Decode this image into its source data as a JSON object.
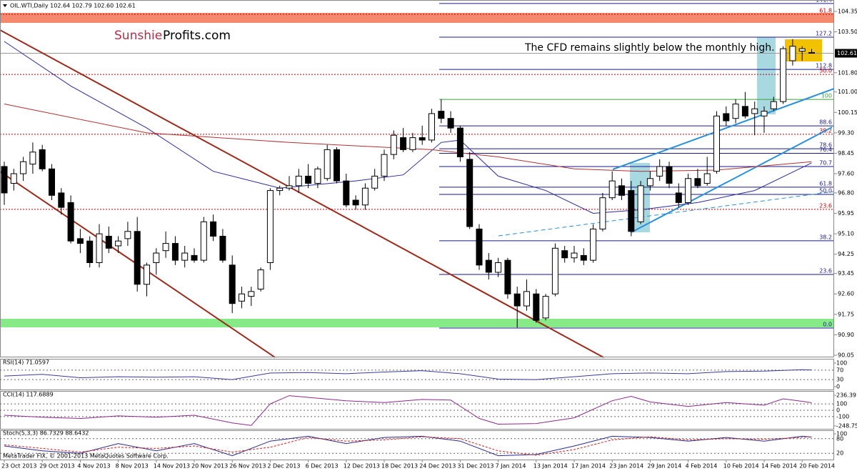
{
  "header": "OIL.WTI,Daily  102.64 102.79 102.60 102.61",
  "logo": {
    "part1": "Sunshie",
    "part2": "Profits.com"
  },
  "annotation": "The CFD remains slightly below the monthly high.",
  "copyright": "MetaTrader FIX, © 2001-2013 MetaQuotes Software Corp.",
  "chart_data": [
    {
      "type": "candlestick",
      "categories": [
        "23 Oct 2013",
        null,
        null,
        null,
        "29 Oct 2013",
        null,
        null,
        null,
        "4 Nov 2013",
        null,
        null,
        null,
        "8 Nov 2013",
        null,
        null,
        null,
        "14 Nov 2013",
        null,
        null,
        null,
        "20 Nov 2013",
        null,
        null,
        null,
        "26 Nov 2013",
        null,
        null,
        null,
        "2 Dec 2013",
        null,
        null,
        null,
        "6 Dec 2013",
        null,
        null,
        null,
        "12 Dec 2013",
        null,
        null,
        null,
        "18 Dec 2013",
        null,
        null,
        null,
        "24 Dec 2013",
        null,
        null,
        null,
        "31 Dec 2013",
        null,
        null,
        null,
        "7 Jan 2014",
        null,
        null,
        null,
        "13 Jan 2014",
        null,
        null,
        null,
        "17 Jan 2014",
        null,
        null,
        null,
        "23 Jan 2014",
        null,
        null,
        null,
        "29 Jan 2014",
        null,
        null,
        null,
        "4 Feb 2014",
        null,
        null,
        null,
        "10 Feb 2014",
        null,
        null,
        null,
        "14 Feb 2014",
        null,
        null,
        null,
        "20 Feb 2014",
        null
      ],
      "ohlc": [
        [
          97.9,
          98.1,
          96.3,
          96.8
        ],
        [
          97.2,
          97.8,
          96.9,
          97.6
        ],
        [
          97.6,
          98.3,
          97.3,
          98.1
        ],
        [
          98.0,
          98.9,
          97.6,
          98.5
        ],
        [
          98.6,
          98.8,
          97.7,
          97.8
        ],
        [
          97.8,
          98.0,
          96.5,
          96.7
        ],
        [
          96.8,
          97.0,
          95.9,
          96.2
        ],
        [
          96.4,
          96.7,
          94.7,
          94.8
        ],
        [
          94.9,
          95.3,
          94.3,
          94.7
        ],
        [
          94.8,
          95.0,
          93.7,
          93.9
        ],
        [
          93.9,
          95.5,
          93.7,
          95.1
        ],
        [
          95.0,
          95.4,
          94.3,
          94.5
        ],
        [
          94.6,
          95.0,
          94.3,
          94.8
        ],
        [
          94.9,
          95.6,
          94.6,
          95.2
        ],
        [
          95.2,
          95.8,
          92.7,
          93.0
        ],
        [
          93.0,
          93.9,
          92.5,
          93.8
        ],
        [
          93.9,
          94.5,
          93.4,
          94.3
        ],
        [
          94.4,
          95.2,
          94.1,
          94.7
        ],
        [
          94.7,
          95.0,
          93.8,
          94.0
        ],
        [
          94.0,
          94.6,
          93.7,
          94.3
        ],
        [
          94.2,
          94.5,
          93.9,
          94.0
        ],
        [
          94.0,
          95.8,
          93.9,
          95.6
        ],
        [
          95.6,
          95.9,
          94.8,
          95.0
        ],
        [
          95.0,
          95.3,
          93.9,
          94.0
        ],
        [
          93.8,
          94.2,
          91.8,
          92.2
        ],
        [
          92.3,
          92.9,
          92.0,
          92.6
        ],
        [
          92.5,
          92.9,
          92.1,
          92.7
        ],
        [
          92.8,
          93.7,
          92.7,
          93.6
        ],
        [
          93.9,
          97.0,
          93.6,
          96.9
        ],
        [
          96.9,
          97.1,
          96.7,
          97.0
        ],
        [
          97.0,
          97.5,
          96.9,
          97.1
        ],
        [
          97.1,
          97.8,
          96.8,
          97.5
        ],
        [
          97.5,
          98.0,
          97.0,
          97.2
        ],
        [
          97.2,
          97.9,
          97.0,
          97.8
        ],
        [
          97.4,
          98.8,
          97.3,
          98.6
        ],
        [
          98.6,
          98.7,
          97.2,
          97.3
        ],
        [
          97.3,
          97.6,
          96.2,
          96.3
        ],
        [
          96.5,
          96.7,
          96.1,
          96.3
        ],
        [
          96.3,
          97.2,
          96.1,
          97.0
        ],
        [
          97.0,
          97.8,
          96.9,
          97.5
        ],
        [
          97.5,
          98.6,
          97.3,
          98.4
        ],
        [
          98.4,
          99.4,
          98.2,
          99.2
        ],
        [
          99.1,
          99.5,
          98.5,
          98.6
        ],
        [
          98.6,
          99.3,
          98.5,
          99.1
        ],
        [
          99.1,
          99.6,
          98.8,
          99.0
        ],
        [
          99.0,
          100.3,
          98.9,
          100.1
        ],
        [
          100.2,
          100.7,
          99.7,
          99.9
        ],
        [
          99.9,
          100.2,
          99.3,
          99.5
        ],
        [
          99.5,
          99.6,
          98.1,
          98.3
        ],
        [
          98.2,
          98.5,
          95.3,
          95.4
        ],
        [
          95.3,
          95.5,
          93.6,
          93.8
        ],
        [
          94.0,
          94.3,
          93.2,
          93.5
        ],
        [
          93.5,
          94.1,
          93.3,
          93.9
        ],
        [
          94.0,
          94.1,
          92.4,
          92.6
        ],
        [
          92.6,
          92.9,
          91.2,
          92.1
        ],
        [
          92.1,
          93.2,
          91.9,
          92.7
        ],
        [
          92.6,
          92.8,
          91.4,
          91.5
        ],
        [
          91.6,
          92.6,
          91.5,
          92.5
        ],
        [
          92.6,
          94.7,
          92.5,
          94.5
        ],
        [
          94.4,
          94.6,
          93.9,
          94.1
        ],
        [
          94.1,
          94.6,
          93.9,
          94.3
        ],
        [
          94.2,
          94.5,
          93.8,
          94.0
        ],
        [
          94.0,
          95.5,
          93.9,
          95.3
        ],
        [
          95.3,
          96.8,
          95.2,
          96.6
        ],
        [
          96.6,
          97.7,
          96.5,
          97.3
        ],
        [
          97.1,
          97.4,
          96.5,
          96.7
        ],
        [
          96.9,
          97.3,
          95.0,
          95.2
        ],
        [
          95.6,
          97.3,
          95.5,
          97.1
        ],
        [
          97.1,
          97.7,
          96.9,
          97.4
        ],
        [
          97.5,
          98.2,
          97.3,
          97.9
        ],
        [
          97.9,
          98.1,
          97.0,
          97.2
        ],
        [
          96.8,
          97.2,
          96.2,
          96.4
        ],
        [
          96.4,
          97.6,
          96.3,
          97.4
        ],
        [
          97.4,
          97.8,
          97.0,
          97.1
        ],
        [
          97.2,
          98.3,
          97.1,
          97.6
        ],
        [
          97.7,
          100.2,
          97.6,
          100.0
        ],
        [
          100.1,
          100.4,
          99.6,
          99.8
        ],
        [
          99.9,
          100.7,
          99.7,
          100.5
        ],
        [
          100.4,
          101.0,
          99.9,
          100.0
        ],
        [
          100.1,
          100.6,
          99.2,
          100.3
        ],
        [
          100.0,
          100.4,
          99.3,
          100.2
        ],
        [
          100.3,
          100.8,
          100.2,
          100.6
        ],
        [
          100.6,
          102.9,
          100.5,
          102.8
        ],
        [
          102.3,
          103.2,
          102.1,
          102.9
        ],
        [
          102.7,
          102.9,
          102.3,
          102.8
        ],
        [
          102.64,
          102.79,
          102.6,
          102.61
        ]
      ],
      "ylim": [
        90.05,
        104.35
      ],
      "yticks": [
        104.35,
        {
          "value": 103.5,
          "label": "103.50"
        },
        {
          "value": 101.8,
          "label": "101.80"
        },
        {
          "value": 101,
          "label": "101.00"
        },
        100.15,
        {
          "value": 99.3,
          "label": "99.30"
        },
        98.45,
        {
          "value": 97.6,
          "label": "97.60"
        },
        {
          "value": 96.8,
          "label": "96.80"
        },
        95.95,
        {
          "value": 95.1,
          "label": "95.10"
        },
        94.25,
        93.45,
        {
          "value": 92.6,
          "label": "92.60"
        },
        91.75,
        {
          "value": 90.9,
          "label": "90.90"
        },
        90.05
      ],
      "last_price": 102.61,
      "moving_averages": [
        {
          "color": "#2a2a9c",
          "x": [
            0,
            7,
            15,
            22,
            29,
            37,
            42,
            46,
            48,
            52,
            57,
            62,
            67,
            73,
            79,
            85
          ],
          "values": [
            103.1,
            101.25,
            99.5,
            97.7,
            97.0,
            97.3,
            97.55,
            98.9,
            99.0,
            97.5,
            96.9,
            95.95,
            96.1,
            96.4,
            96.9,
            98.05
          ]
        },
        {
          "color": "#b03030",
          "x": [
            0,
            15,
            30,
            45,
            52,
            60,
            67,
            75,
            85
          ],
          "values": [
            100.5,
            99.3,
            98.9,
            98.6,
            98.3,
            97.8,
            97.7,
            97.75,
            98.1
          ]
        }
      ],
      "fib_levels": [
        {
          "label": "141.4",
          "value": 104.68,
          "color": "#1a1a8c",
          "dashed": false
        },
        {
          "label": "127.2",
          "value": 103.28,
          "color": "#1a1a8c",
          "dashed": false
        },
        {
          "label": "112.8",
          "value": 101.94,
          "color": "#1a1a8c",
          "dashed": false
        },
        {
          "label": "100",
          "value": 100.69,
          "color": "#3aa03a",
          "dashed": false
        },
        {
          "label": "88.6",
          "value": 99.59,
          "color": "#1a1a8c",
          "dashed": false
        },
        {
          "label": "78.6",
          "value": 98.64,
          "color": "#1a1a8c",
          "dashed": false
        },
        {
          "label": "76.4",
          "value": 98.45,
          "color": "#1a1a8c",
          "dashed": false
        },
        {
          "label": "70.7",
          "value": 97.9,
          "color": "#1a1a8c",
          "dashed": false
        },
        {
          "label": "61.8",
          "value": 97.04,
          "color": "#1a1a8c",
          "dashed": false
        },
        {
          "label": "50.0",
          "value": 96.74,
          "color": "#1a1a8c",
          "dashed": false
        },
        {
          "label": "38.2",
          "value": 94.81,
          "color": "#1a1a8c",
          "dashed": false
        },
        {
          "label": "23.6",
          "value": 93.41,
          "color": "#1a1a8c",
          "dashed": false
        },
        {
          "label": "0.0",
          "value": 91.18,
          "color": "#1a1a8c",
          "dashed": false
        },
        {
          "label": "61.8",
          "value": 104.23,
          "color": "#c00000",
          "dashed": true
        },
        {
          "label": "50.0",
          "value": 101.73,
          "color": "#c00000",
          "dashed": true
        },
        {
          "label": "38.2",
          "value": 99.24,
          "color": "#c00000",
          "dashed": true
        },
        {
          "label": "23.6",
          "value": 96.12,
          "color": "#c00000",
          "dashed": true
        }
      ]
    },
    {
      "type": "line",
      "label": "RSI(14) 71.0597",
      "ylim": [
        0,
        100
      ],
      "yticks": [
        100,
        70,
        30,
        0
      ],
      "series": [
        {
          "color": "#3a3a9a",
          "dashed": false,
          "x": [
            0,
            4,
            8,
            12,
            16,
            20,
            24,
            28,
            32,
            36,
            40,
            44,
            48,
            52,
            56,
            60,
            64,
            68,
            72,
            76,
            80,
            84,
            85
          ],
          "values": [
            45,
            52,
            38,
            42,
            40,
            42,
            30,
            58,
            60,
            55,
            62,
            68,
            55,
            32,
            30,
            42,
            55,
            58,
            55,
            64,
            66,
            72,
            71.06
          ]
        }
      ]
    },
    {
      "type": "line",
      "label": "CCI(14) 117.6889",
      "ylim": [
        -248.753,
        236.3916
      ],
      "yticks": [
        236.3916,
        100,
        0,
        -100,
        -248.753
      ],
      "series": [
        {
          "color": "#8b2a8b",
          "dashed": false,
          "x": [
            0,
            4,
            8,
            12,
            16,
            20,
            24,
            26,
            28,
            30,
            36,
            40,
            44,
            47,
            50,
            52,
            56,
            60,
            64,
            66,
            68,
            72,
            76,
            80,
            82,
            84,
            85
          ],
          "values": [
            -80,
            -110,
            -130,
            -90,
            -110,
            -80,
            -200,
            -240,
            100,
            230,
            150,
            120,
            170,
            160,
            -130,
            -220,
            -210,
            -120,
            150,
            220,
            130,
            60,
            120,
            80,
            180,
            140,
            117.69
          ]
        }
      ]
    },
    {
      "type": "line",
      "label": "Stoch(5,3,3) 86.7329 88.6432",
      "ylim": [
        0,
        100
      ],
      "yticks": [
        100,
        80,
        20
      ],
      "series": [
        {
          "color": "#2a2a8c",
          "dashed": false,
          "x": [
            0,
            4,
            8,
            12,
            16,
            20,
            24,
            28,
            32,
            36,
            40,
            44,
            48,
            52,
            56,
            60,
            64,
            68,
            72,
            76,
            80,
            84,
            85
          ],
          "values": [
            50,
            30,
            20,
            60,
            30,
            60,
            10,
            70,
            90,
            60,
            85,
            90,
            70,
            10,
            15,
            50,
            90,
            85,
            70,
            85,
            70,
            90,
            86.73
          ]
        },
        {
          "color": "#d02020",
          "dashed": true,
          "x": [
            0,
            4,
            8,
            12,
            16,
            20,
            24,
            28,
            32,
            36,
            40,
            44,
            48,
            52,
            56,
            60,
            64,
            68,
            72,
            76,
            80,
            84,
            85
          ],
          "values": [
            55,
            40,
            25,
            45,
            40,
            50,
            25,
            45,
            85,
            70,
            75,
            88,
            80,
            30,
            12,
            35,
            75,
            88,
            75,
            80,
            78,
            85,
            88.64
          ]
        }
      ]
    }
  ]
}
